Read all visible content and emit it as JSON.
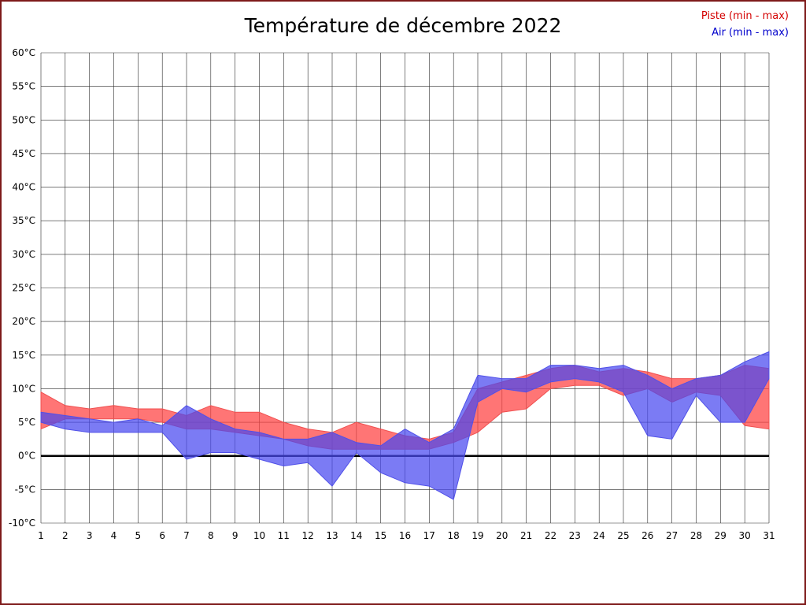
{
  "title": "Température de décembre 2022",
  "legend": {
    "piste_label": "Piste (min - max)",
    "air_label": "Air (min - max)"
  },
  "colors": {
    "piste_text": "#d40000",
    "air_text": "#0000cc",
    "grid": "#2b2b2b",
    "zero_line": "#000000",
    "border": "#7e1a1a",
    "background": "#ffffff"
  },
  "chart_data": {
    "type": "area",
    "title": "Température de décembre 2022",
    "xlabel": "",
    "ylabel": "",
    "x": [
      1,
      2,
      3,
      4,
      5,
      6,
      7,
      8,
      9,
      10,
      11,
      12,
      13,
      14,
      15,
      16,
      17,
      18,
      19,
      20,
      21,
      22,
      23,
      24,
      25,
      26,
      27,
      28,
      29,
      30,
      31
    ],
    "xlim": [
      1,
      31
    ],
    "ylim": [
      -10,
      60
    ],
    "ytick_step": 5,
    "ytick_suffix": "°C",
    "grid": true,
    "legend_position": "top-right",
    "zero_line": 0,
    "series": [
      {
        "key": "piste",
        "name": "Piste (min - max)",
        "color": "#d40000",
        "fill": "rgba(255,64,64,0.72)",
        "stroke": "#f05050",
        "min": [
          4,
          5.5,
          5.5,
          5.5,
          5.5,
          5,
          4,
          4,
          3.5,
          3,
          2.5,
          1.5,
          1,
          1,
          1,
          1,
          1,
          2,
          3.5,
          6.5,
          7,
          10,
          10.5,
          10.5,
          9,
          10,
          8,
          9.5,
          9,
          4.5,
          4
        ],
        "max": [
          9.5,
          7.5,
          7,
          7.5,
          7,
          7,
          6,
          7.5,
          6.5,
          6.5,
          5,
          4,
          3.5,
          5,
          4,
          3,
          2.5,
          3.5,
          10,
          11,
          12,
          13,
          13.5,
          12.5,
          13,
          12.5,
          11.5,
          11.5,
          12,
          13.5,
          13
        ]
      },
      {
        "key": "air",
        "name": "Air (min - max)",
        "color": "#0000cc",
        "fill": "rgba(72,72,240,0.72)",
        "stroke": "#5050e8",
        "min": [
          5,
          4,
          3.5,
          3.5,
          3.5,
          3.5,
          -0.5,
          0.5,
          0.5,
          -0.5,
          -1.5,
          -1,
          -4.5,
          0.5,
          -2.5,
          -4,
          -4.5,
          -6.5,
          8,
          10,
          9.5,
          11,
          11.5,
          11,
          9.5,
          3,
          2.5,
          9,
          5,
          5,
          11.5
        ],
        "max": [
          6.5,
          6,
          5.5,
          5,
          5.5,
          4.5,
          7.5,
          5.5,
          4,
          3.5,
          2.5,
          2.5,
          3.5,
          2,
          1.5,
          4,
          2,
          4,
          12,
          11.5,
          11.5,
          13.5,
          13.5,
          13,
          13.5,
          12,
          10,
          11.5,
          12,
          14,
          15.5
        ]
      }
    ]
  }
}
